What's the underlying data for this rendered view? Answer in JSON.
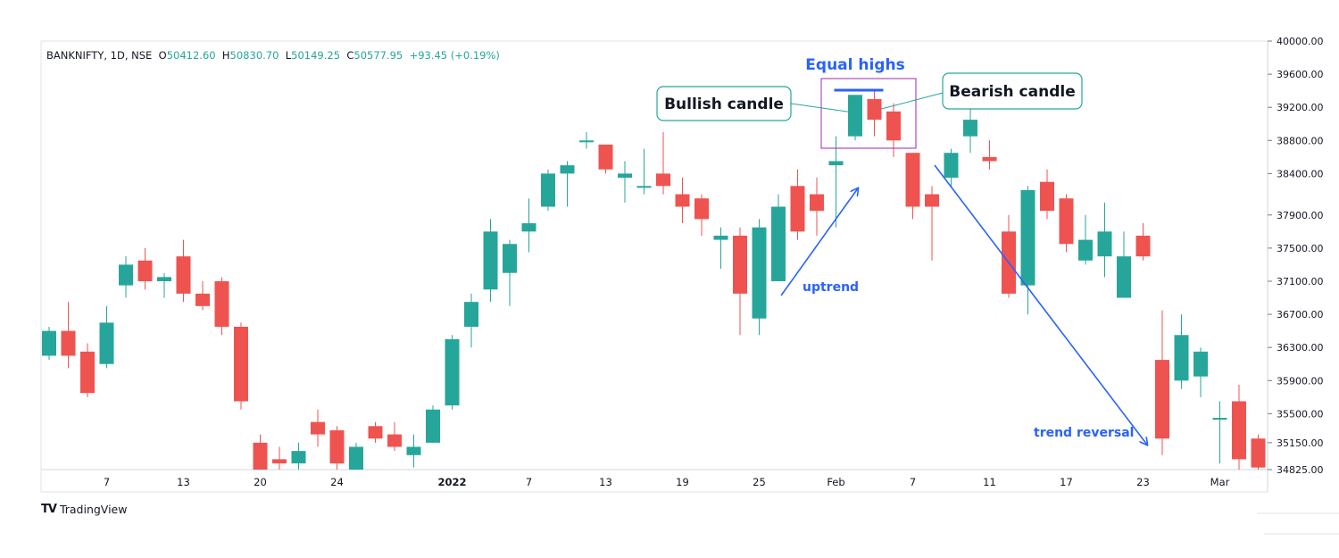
{
  "legend": {
    "symbol": "BANKNIFTY, 1D, NSE",
    "open_label": "O",
    "open": "50412.60",
    "high_label": "H",
    "high": "50830.70",
    "low_label": "L",
    "low": "50149.25",
    "close_label": "C",
    "close": "50577.95",
    "change": "+93.45 (+0.19%)"
  },
  "brand": {
    "name": "TradingView",
    "logo": "TV"
  },
  "colors": {
    "up": "#26a69a",
    "down": "#ef5350",
    "annotation": "#2962ff",
    "highlight_box": "#9c27b0",
    "callout_border": "#26a69a"
  },
  "chart_data": {
    "type": "candlestick",
    "price_axis_ticks": [
      "40000.00",
      "39600.00",
      "39200.00",
      "38800.00",
      "38400.00",
      "37900.00",
      "37500.00",
      "37100.00",
      "36700.00",
      "36300.00",
      "35900.00",
      "35500.00",
      "35150.00",
      "34825.00"
    ],
    "time_axis_ticks": [
      {
        "label": "7",
        "bar": 3
      },
      {
        "label": "13",
        "bar": 7
      },
      {
        "label": "20",
        "bar": 11
      },
      {
        "label": "24",
        "bar": 15
      },
      {
        "label": "2022",
        "bar": 21,
        "bold": true
      },
      {
        "label": "7",
        "bar": 25
      },
      {
        "label": "13",
        "bar": 29
      },
      {
        "label": "19",
        "bar": 33
      },
      {
        "label": "25",
        "bar": 37
      },
      {
        "label": "Feb",
        "bar": 41
      },
      {
        "label": "7",
        "bar": 45
      },
      {
        "label": "11",
        "bar": 49
      },
      {
        "label": "17",
        "bar": 53
      },
      {
        "label": "23",
        "bar": 57
      },
      {
        "label": "Mar",
        "bar": 61
      }
    ],
    "candles": [
      {
        "o": 36200,
        "h": 36550,
        "l": 36150,
        "c": 36500
      },
      {
        "o": 36500,
        "h": 36850,
        "l": 36050,
        "c": 36200
      },
      {
        "o": 36250,
        "h": 36350,
        "l": 35700,
        "c": 35750
      },
      {
        "o": 36100,
        "h": 36800,
        "l": 36050,
        "c": 36600
      },
      {
        "o": 37050,
        "h": 37400,
        "l": 36900,
        "c": 37300
      },
      {
        "o": 37350,
        "h": 37500,
        "l": 37000,
        "c": 37100
      },
      {
        "o": 37100,
        "h": 37200,
        "l": 36900,
        "c": 37150
      },
      {
        "o": 37400,
        "h": 37600,
        "l": 36850,
        "c": 36950
      },
      {
        "o": 36950,
        "h": 37100,
        "l": 36750,
        "c": 36800
      },
      {
        "o": 37100,
        "h": 37150,
        "l": 36450,
        "c": 36550
      },
      {
        "o": 36550,
        "h": 36600,
        "l": 35550,
        "c": 35650
      },
      {
        "o": 35150,
        "h": 35250,
        "l": 34800,
        "c": 34825
      },
      {
        "o": 34950,
        "h": 35100,
        "l": 34800,
        "c": 34900
      },
      {
        "o": 34900,
        "h": 35150,
        "l": 34825,
        "c": 35050
      },
      {
        "o": 35400,
        "h": 35550,
        "l": 35100,
        "c": 35250
      },
      {
        "o": 35300,
        "h": 35350,
        "l": 34825,
        "c": 34900
      },
      {
        "o": 34825,
        "h": 35150,
        "l": 34800,
        "c": 35100
      },
      {
        "o": 35350,
        "h": 35400,
        "l": 35150,
        "c": 35200
      },
      {
        "o": 35250,
        "h": 35400,
        "l": 35050,
        "c": 35100
      },
      {
        "o": 35000,
        "h": 35250,
        "l": 34850,
        "c": 35100
      },
      {
        "o": 35150,
        "h": 35600,
        "l": 35150,
        "c": 35550
      },
      {
        "o": 35600,
        "h": 36450,
        "l": 35550,
        "c": 36400
      },
      {
        "o": 36550,
        "h": 36950,
        "l": 36300,
        "c": 36850
      },
      {
        "o": 37000,
        "h": 37850,
        "l": 36850,
        "c": 37700
      },
      {
        "o": 37200,
        "h": 37600,
        "l": 36800,
        "c": 37550
      },
      {
        "o": 37700,
        "h": 38100,
        "l": 37450,
        "c": 37800
      },
      {
        "o": 38000,
        "h": 38450,
        "l": 37950,
        "c": 38400
      },
      {
        "o": 38400,
        "h": 38550,
        "l": 38000,
        "c": 38500
      },
      {
        "o": 38800,
        "h": 38900,
        "l": 38700,
        "c": 38800
      },
      {
        "o": 38750,
        "h": 38750,
        "l": 38400,
        "c": 38450
      },
      {
        "o": 38350,
        "h": 38550,
        "l": 38050,
        "c": 38400
      },
      {
        "o": 38250,
        "h": 38700,
        "l": 38150,
        "c": 38250
      },
      {
        "o": 38400,
        "h": 38900,
        "l": 38150,
        "c": 38250
      },
      {
        "o": 38150,
        "h": 38350,
        "l": 37800,
        "c": 38000
      },
      {
        "o": 38100,
        "h": 38150,
        "l": 37650,
        "c": 37850
      },
      {
        "o": 37600,
        "h": 37750,
        "l": 37250,
        "c": 37650
      },
      {
        "o": 37650,
        "h": 37750,
        "l": 36450,
        "c": 36950
      },
      {
        "o": 36650,
        "h": 37850,
        "l": 36450,
        "c": 37750
      },
      {
        "o": 37100,
        "h": 38150,
        "l": 37100,
        "c": 38000
      },
      {
        "o": 38250,
        "h": 38450,
        "l": 37600,
        "c": 37700
      },
      {
        "o": 38150,
        "h": 38350,
        "l": 37650,
        "c": 37950
      },
      {
        "o": 38500,
        "h": 38850,
        "l": 37750,
        "c": 38550
      },
      {
        "o": 38850,
        "h": 39350,
        "l": 38800,
        "c": 39350
      },
      {
        "o": 39300,
        "h": 39400,
        "l": 38850,
        "c": 39050
      },
      {
        "o": 39150,
        "h": 39250,
        "l": 38600,
        "c": 38800
      },
      {
        "o": 38650,
        "h": 38650,
        "l": 37850,
        "c": 38000
      },
      {
        "o": 38150,
        "h": 38250,
        "l": 37350,
        "c": 38000
      },
      {
        "o": 38350,
        "h": 38700,
        "l": 38250,
        "c": 38650
      },
      {
        "o": 38850,
        "h": 39200,
        "l": 38650,
        "c": 39050
      },
      {
        "o": 38600,
        "h": 38800,
        "l": 38450,
        "c": 38550
      },
      {
        "o": 37700,
        "h": 37900,
        "l": 36900,
        "c": 36950
      },
      {
        "o": 37050,
        "h": 38250,
        "l": 36700,
        "c": 38200
      },
      {
        "o": 38300,
        "h": 38450,
        "l": 37850,
        "c": 37950
      },
      {
        "o": 38100,
        "h": 38150,
        "l": 37450,
        "c": 37550
      },
      {
        "o": 37350,
        "h": 37900,
        "l": 37300,
        "c": 37600
      },
      {
        "o": 37400,
        "h": 38050,
        "l": 37150,
        "c": 37700
      },
      {
        "o": 36900,
        "h": 37700,
        "l": 36900,
        "c": 37400
      },
      {
        "o": 37650,
        "h": 37800,
        "l": 37350,
        "c": 37400
      },
      {
        "o": 36150,
        "h": 36750,
        "l": 35000,
        "c": 35200
      },
      {
        "o": 35900,
        "h": 36700,
        "l": 35800,
        "c": 36450
      },
      {
        "o": 35950,
        "h": 36300,
        "l": 35700,
        "c": 36250
      },
      {
        "o": 35450,
        "h": 35650,
        "l": 34900,
        "c": 35450
      },
      {
        "o": 35650,
        "h": 35850,
        "l": 34800,
        "c": 34950
      },
      {
        "o": 35200,
        "h": 35250,
        "l": 34800,
        "c": 34850
      }
    ],
    "annotations": {
      "title_label": "Equal highs",
      "bullish_label": "Bullish candle",
      "bearish_label": "Bearish candle",
      "uptrend_label": "uptrend",
      "reversal_label": "trend reversal"
    }
  }
}
